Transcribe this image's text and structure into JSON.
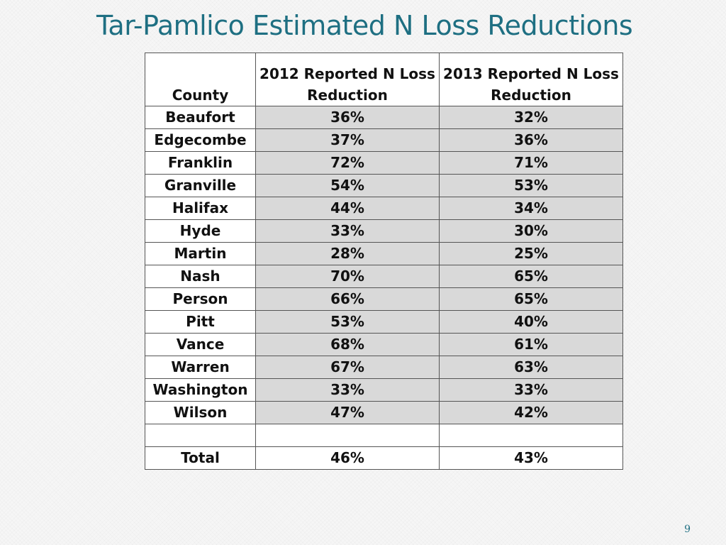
{
  "slide": {
    "title": "Tar-Pamlico Estimated N Loss Reductions",
    "page_number": "9"
  },
  "table": {
    "headers": {
      "county": "County",
      "y2012_line1": "2012 Reported N Loss",
      "y2012_line2": "Reduction",
      "y2013_line1": "2013 Reported N Loss",
      "y2013_line2": "Reduction"
    },
    "rows": [
      {
        "county": "Beaufort",
        "y2012": "36%",
        "y2013": "32%"
      },
      {
        "county": "Edgecombe",
        "y2012": "37%",
        "y2013": "36%"
      },
      {
        "county": "Franklin",
        "y2012": "72%",
        "y2013": "71%"
      },
      {
        "county": "Granville",
        "y2012": "54%",
        "y2013": "53%"
      },
      {
        "county": "Halifax",
        "y2012": "44%",
        "y2013": "34%"
      },
      {
        "county": "Hyde",
        "y2012": "33%",
        "y2013": "30%"
      },
      {
        "county": "Martin",
        "y2012": "28%",
        "y2013": "25%"
      },
      {
        "county": "Nash",
        "y2012": "70%",
        "y2013": "65%"
      },
      {
        "county": "Person",
        "y2012": "66%",
        "y2013": "65%"
      },
      {
        "county": "Pitt",
        "y2012": "53%",
        "y2013": "40%"
      },
      {
        "county": "Vance",
        "y2012": "68%",
        "y2013": "61%"
      },
      {
        "county": "Warren",
        "y2012": "67%",
        "y2013": "63%"
      },
      {
        "county": "Washington",
        "y2012": "33%",
        "y2013": "33%"
      },
      {
        "county": "Wilson",
        "y2012": "47%",
        "y2013": "42%"
      }
    ],
    "total": {
      "label": "Total",
      "y2012": "46%",
      "y2013": "43%"
    }
  }
}
